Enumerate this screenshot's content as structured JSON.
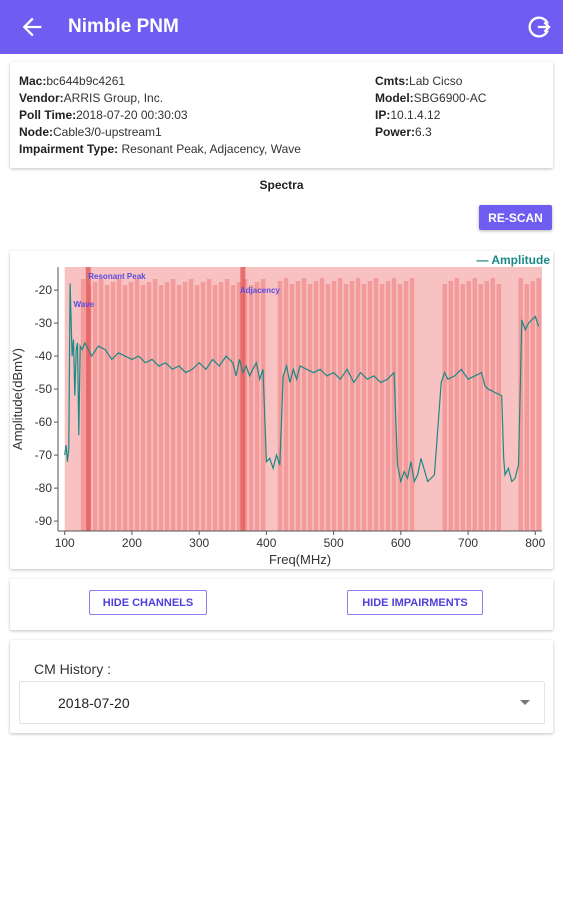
{
  "appbar": {
    "title": "Nimble PNM",
    "back_icon": "arrow-back-icon",
    "exit_icon": "exit-icon"
  },
  "device": {
    "mac_label": "Mac:",
    "mac": "bc644b9c4261",
    "vendor_label": "Vendor:",
    "vendor": "ARRIS Group, Inc.",
    "poll_label": "Poll Time:",
    "poll": "2018-07-20 00:30:03",
    "node_label": "Node:",
    "node": "Cable3/0-upstream1",
    "impairment_label": "Impairment Type:",
    "impairment": "Resonant Peak, Adjacency, Wave",
    "cmts_label": "Cmts:",
    "cmts": "Lab Cicso",
    "model_label": "Model:",
    "model": "SBG6900-AC",
    "ip_label": "IP:",
    "ip": "10.1.4.12",
    "power_label": "Power:",
    "power": "6.3"
  },
  "spectra": {
    "title": "Spectra",
    "rescan_label": "RE-SCAN"
  },
  "chart_data": {
    "type": "line",
    "xlabel": "Freq(MHz)",
    "ylabel": "Amplitude(dBmV)",
    "xlim": [
      90,
      810
    ],
    "ylim": [
      -93,
      -13
    ],
    "xticks": [
      100,
      200,
      300,
      400,
      500,
      600,
      700,
      800
    ],
    "yticks": [
      -20,
      -30,
      -40,
      -50,
      -60,
      -70,
      -80,
      -90
    ],
    "legend": {
      "label": "— Amplitude",
      "position": "top-right"
    },
    "series": [
      {
        "name": "Amplitude",
        "color": "#1a8a86",
        "x": [
          100,
          102,
          104,
          106,
          108,
          111,
          113,
          115,
          117,
          119,
          121,
          123,
          126,
          130,
          140,
          150,
          160,
          170,
          180,
          190,
          200,
          210,
          220,
          230,
          240,
          250,
          260,
          270,
          280,
          290,
          300,
          310,
          320,
          330,
          340,
          350,
          355,
          360,
          365,
          370,
          375,
          380,
          385,
          390,
          395,
          400,
          405,
          410,
          415,
          420,
          425,
          430,
          435,
          440,
          445,
          450,
          460,
          470,
          480,
          490,
          500,
          510,
          520,
          530,
          540,
          550,
          560,
          570,
          580,
          590,
          595,
          600,
          605,
          610,
          615,
          620,
          625,
          630,
          640,
          650,
          660,
          665,
          670,
          680,
          690,
          700,
          710,
          720,
          725,
          730,
          740,
          750,
          753,
          755,
          760,
          765,
          770,
          775,
          780,
          785,
          790,
          800,
          805
        ],
        "values": [
          -70,
          -67,
          -72,
          -68,
          -18,
          -40,
          -35,
          -52,
          -38,
          -36,
          -64,
          -37,
          -38,
          -36,
          -40,
          -37,
          -38,
          -41,
          -39,
          -40,
          -41,
          -40,
          -42,
          -41,
          -43,
          -42,
          -44,
          -43,
          -45,
          -44,
          -42,
          -44,
          -41,
          -43,
          -40,
          -42,
          -46,
          -41,
          -45,
          -43,
          -46,
          -44,
          -42,
          -47,
          -44,
          -72,
          -71,
          -74,
          -70,
          -73,
          -46,
          -43,
          -48,
          -44,
          -47,
          -43,
          -44,
          -45,
          -44,
          -46,
          -45,
          -47,
          -44,
          -48,
          -45,
          -47,
          -46,
          -48,
          -47,
          -45,
          -73,
          -78,
          -75,
          -77,
          -72,
          -78,
          -76,
          -71,
          -78,
          -76,
          -48,
          -45,
          -47,
          -46,
          -44,
          -47,
          -46,
          -45,
          -49,
          -50,
          -51,
          -52,
          -71,
          -76,
          -74,
          -78,
          -77,
          -73,
          -29,
          -32,
          -30,
          -28,
          -31
        ]
      }
    ],
    "channels": [
      {
        "start": 124,
        "end": 398
      },
      {
        "start": 417,
        "end": 618
      },
      {
        "start": 662,
        "end": 748
      },
      {
        "start": 775,
        "end": 810
      }
    ],
    "impairments": [
      {
        "label": "Resonant Peak",
        "at": 135
      },
      {
        "label": "Adjacency",
        "at": 365
      },
      {
        "label": "Wave",
        "at": 122
      }
    ],
    "colors": {
      "band": "#f6aeae",
      "impairment": "#e35a5a",
      "bar": "#ef7b7b"
    }
  },
  "controls": {
    "hide_channels": "HIDE CHANNELS",
    "hide_impairments": "HIDE IMPAIRMENTS"
  },
  "history": {
    "label": "CM History :",
    "selected": "2018-07-20"
  }
}
